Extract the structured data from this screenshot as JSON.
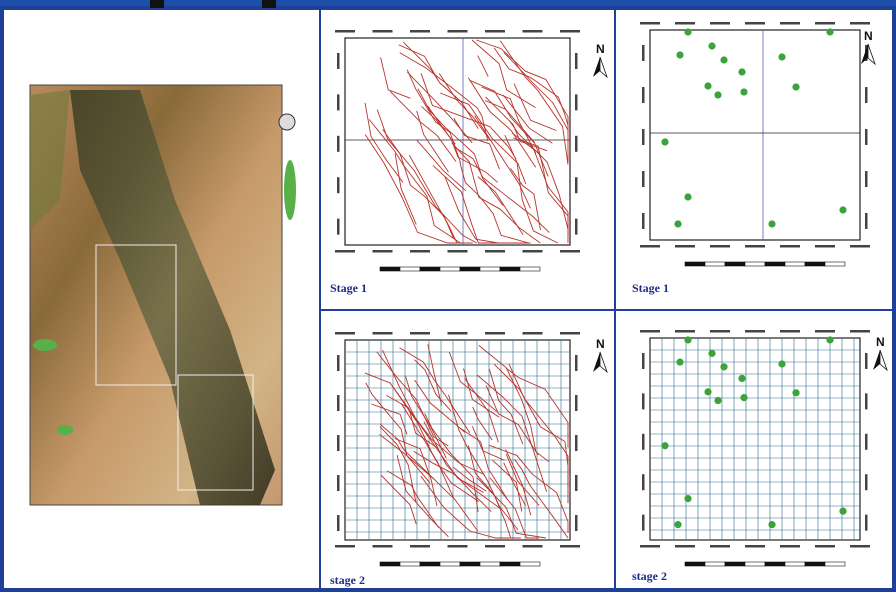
{
  "panels": [
    {
      "label": "Stage 1"
    },
    {
      "label": "Stage 1"
    },
    {
      "label": "stage 2"
    },
    {
      "label": "stage 2"
    }
  ],
  "north": "N"
}
